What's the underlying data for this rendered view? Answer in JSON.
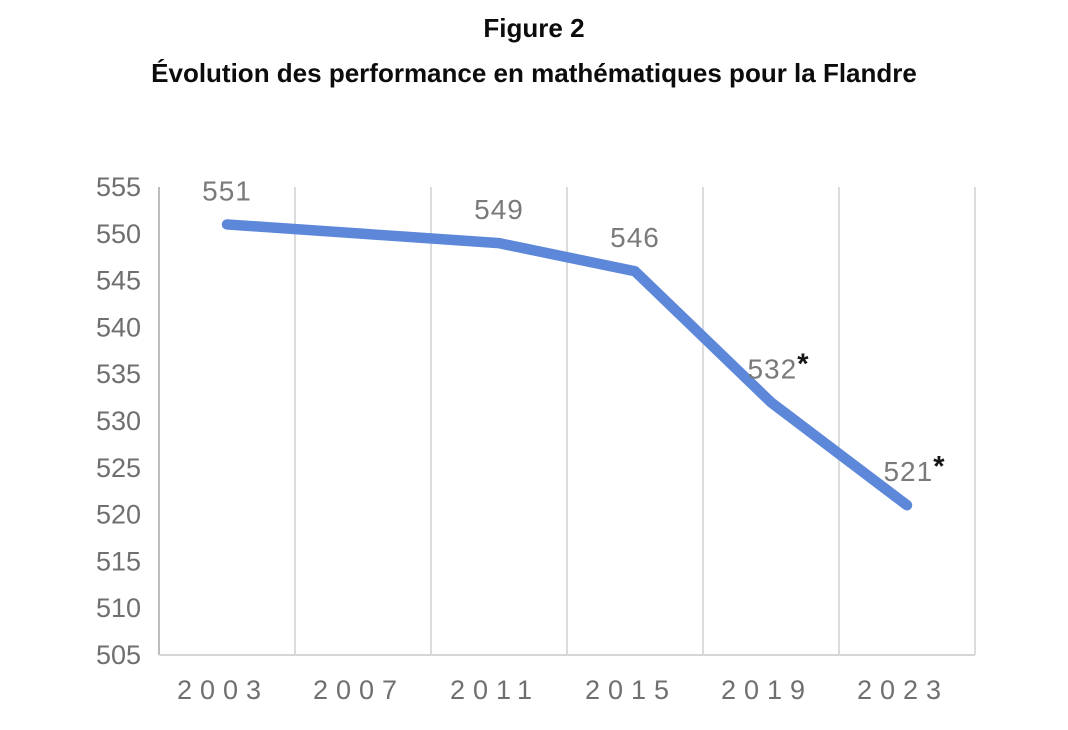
{
  "chart_data": {
    "type": "line",
    "title": "Figure 2",
    "subtitle": "Évolution des performance en mathématiques pour la Flandre",
    "categories": [
      "2003",
      "2007",
      "2011",
      "2015",
      "2019",
      "2023"
    ],
    "series": [
      {
        "values": [
          551,
          550,
          549,
          546,
          532,
          521
        ]
      }
    ],
    "point_labels": [
      {
        "text": "551",
        "starred": false
      },
      {
        "text": null,
        "starred": false
      },
      {
        "text": "549",
        "starred": false
      },
      {
        "text": "546",
        "starred": false
      },
      {
        "text": "532",
        "starred": true
      },
      {
        "text": "521",
        "starred": true
      }
    ],
    "xlabel": "",
    "ylabel": "",
    "ylim": [
      505,
      555
    ],
    "ytick_step": 5,
    "yticks": [
      555,
      550,
      545,
      540,
      535,
      530,
      525,
      520,
      515,
      510,
      505
    ],
    "grid": "vertical-only",
    "legend": "none",
    "colors": {
      "line": "#5d87d9",
      "axis_text": "#6f6f6f",
      "data_label": "#7a7a7a",
      "asterisk": "#151515",
      "gridline": "#d9d9d9",
      "axis_line_y": "#bdbdbd",
      "axis_line_x": "#d6d6d6",
      "background": "#ffffff"
    }
  }
}
